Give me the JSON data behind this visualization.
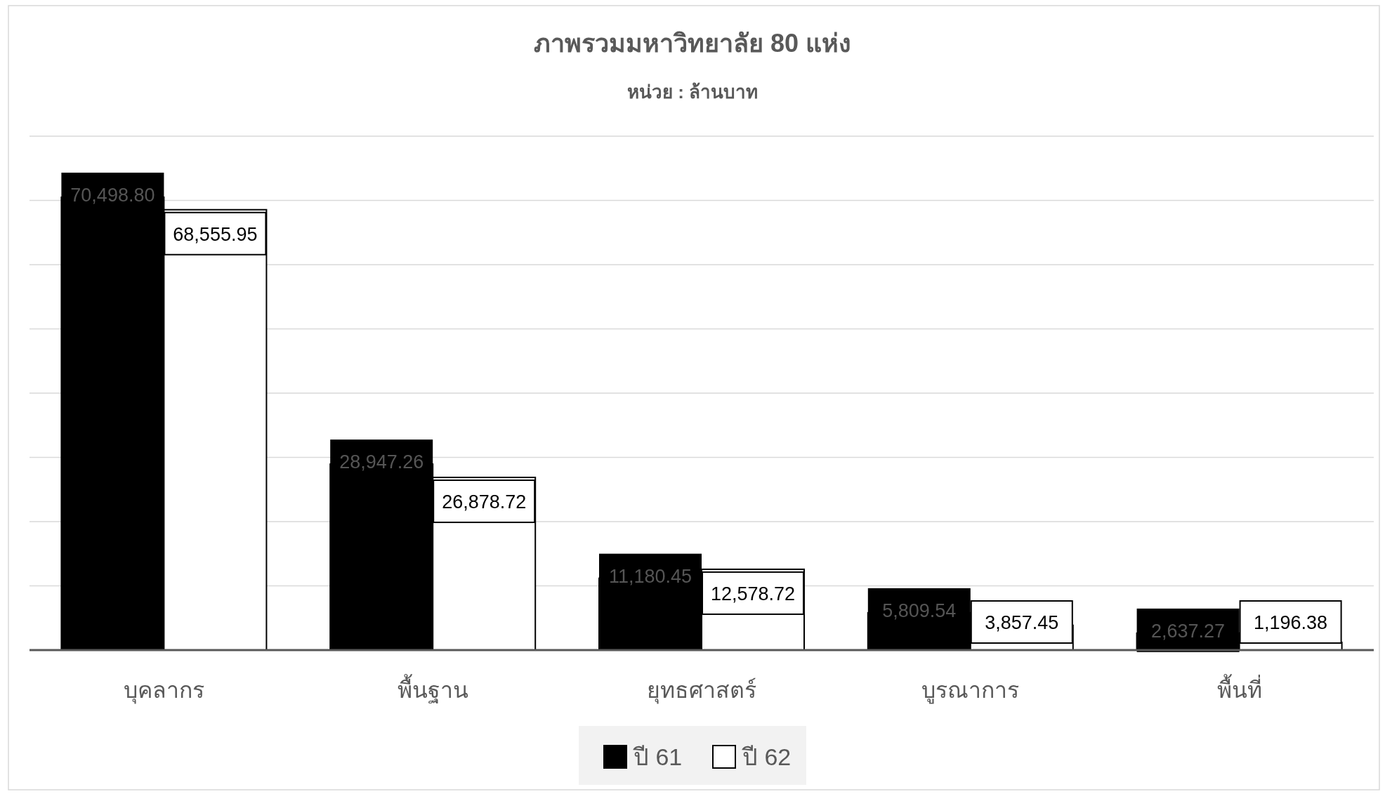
{
  "chart_data": {
    "type": "bar",
    "title": "ภาพรวมมหาวิทยาลัย 80 แห่ง",
    "subtitle": "หน่วย : ล้านบาท",
    "categories": [
      "บุคลากร",
      "พื้นฐาน",
      "ยุทธศาสตร์",
      "บูรณาการ",
      "พื้นที่"
    ],
    "series": [
      {
        "name": "ปี 61",
        "color": "#000000",
        "values": [
          70498.8,
          28947.26,
          11180.45,
          5809.54,
          2637.27
        ],
        "value_labels": [
          "70,498.80",
          "28,947.26",
          "11,180.45",
          "5,809.54",
          "2,637.27"
        ]
      },
      {
        "name": "ปี 62",
        "color": "#ffffff",
        "values": [
          68555.95,
          26878.72,
          12578.72,
          3857.45,
          1196.38
        ],
        "value_labels": [
          "68,555.95",
          "26,878.72",
          "12,578.72",
          "3,857.45",
          "1,196.38"
        ]
      }
    ],
    "ylim": [
      0,
      80000
    ],
    "yticks": [
      {
        "value": 0,
        "label": null
      },
      {
        "value": 10000,
        "label": null
      },
      {
        "value": 20000,
        "label": null
      },
      {
        "value": 30000,
        "label": null
      },
      {
        "value": 40000,
        "label": null
      },
      {
        "value": 50000,
        "label": null
      },
      {
        "value": 60000,
        "label": null
      },
      {
        "value": 70000,
        "label": null
      },
      {
        "value": 80000,
        "label": null
      }
    ],
    "grid": "y",
    "legend": "bottom"
  }
}
